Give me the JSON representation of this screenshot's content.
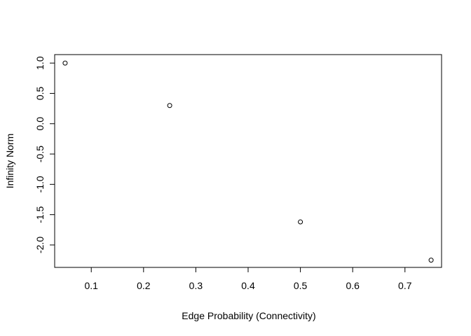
{
  "chart_data": {
    "type": "scatter",
    "title": "",
    "xlabel": "Edge Probability (Connectivity)",
    "ylabel": "Infinity Norm",
    "xlim": [
      0.03,
      0.77
    ],
    "ylim": [
      -2.37,
      1.14
    ],
    "x_ticks": [
      0.1,
      0.2,
      0.3,
      0.4,
      0.5,
      0.6,
      0.7
    ],
    "x_tick_labels": [
      "0.1",
      "0.2",
      "0.3",
      "0.4",
      "0.5",
      "0.6",
      "0.7"
    ],
    "y_ticks": [
      1.0,
      0.5,
      0.0,
      -0.5,
      -1.0,
      -1.5,
      -2.0
    ],
    "y_tick_labels": [
      "1.0",
      "0.5",
      "0.0",
      "-0.5",
      "-1.0",
      "-1.5",
      "-2.0"
    ],
    "grid": false,
    "legend": "none",
    "marker": "open-circle",
    "series": [
      {
        "x": [
          0.05,
          0.25,
          0.5,
          0.75
        ],
        "y": [
          1.0,
          0.3,
          -1.62,
          -2.25
        ]
      }
    ],
    "colors": {
      "point": "#000000",
      "axis": "#000000",
      "background": "#ffffff"
    }
  }
}
